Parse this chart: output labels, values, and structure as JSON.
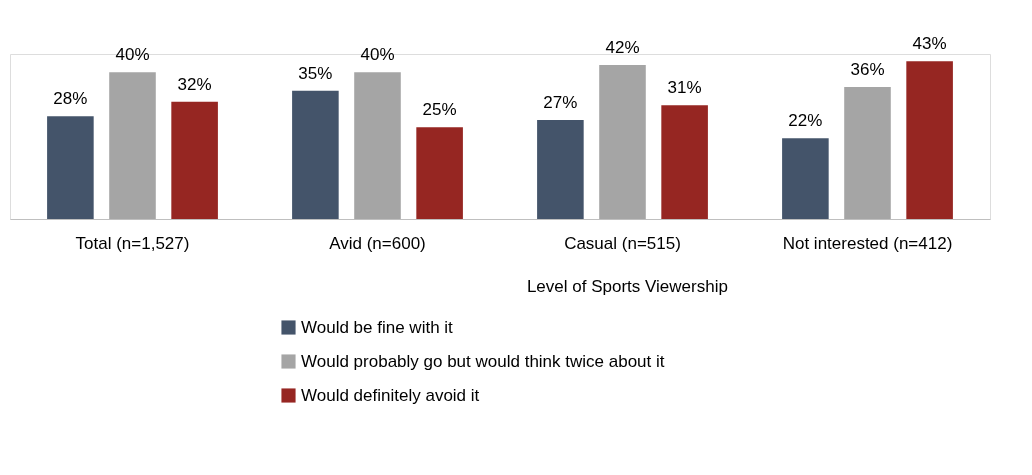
{
  "chart_data": {
    "type": "bar",
    "categories": [
      "Total (n=1,527)",
      "Avid (n=600)",
      "Casual (n=515)",
      "Not interested (n=412)"
    ],
    "series": [
      {
        "name": "Would be fine with it",
        "color": "#44546a",
        "values": [
          28,
          35,
          27,
          22
        ],
        "value_labels": [
          "28%",
          "35%",
          "27%",
          "22%"
        ]
      },
      {
        "name": "Would probably go but would think twice about it",
        "color": "#a5a5a5",
        "values": [
          40,
          40,
          42,
          36
        ],
        "value_labels": [
          "40%",
          "40%",
          "42%",
          "36%"
        ]
      },
      {
        "name": "Would definitely avoid it",
        "color": "#962622",
        "values": [
          32,
          25,
          31,
          43
        ],
        "value_labels": [
          "32%",
          "25%",
          "31%",
          "43%"
        ]
      }
    ],
    "annotations": [
      "Level of Sports Viewership"
    ],
    "legend": "bottom",
    "grid": false
  }
}
